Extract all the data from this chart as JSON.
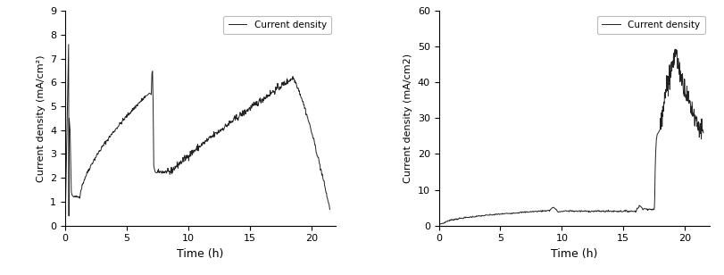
{
  "left": {
    "ylabel": "Current density (mA/cm²)",
    "xlabel": "Time (h)",
    "legend_label": "Current density",
    "xlim": [
      0,
      22
    ],
    "ylim": [
      0,
      9
    ],
    "xticks": [
      0,
      5,
      10,
      15,
      20
    ],
    "yticks": [
      0,
      1,
      2,
      3,
      4,
      5,
      6,
      7,
      8,
      9
    ],
    "line_color": "#222222",
    "line_width": 0.7
  },
  "right": {
    "ylabel": "Current density (mA/cm2)",
    "xlabel": "Time (h)",
    "legend_label": "Current density",
    "xlim": [
      0,
      22
    ],
    "ylim": [
      0,
      60
    ],
    "xticks": [
      0,
      5,
      10,
      15,
      20
    ],
    "yticks": [
      0,
      10,
      20,
      30,
      40,
      50,
      60
    ],
    "line_color": "#222222",
    "line_width": 0.7
  },
  "background_color": "#ffffff",
  "fig_background": "#ffffff"
}
